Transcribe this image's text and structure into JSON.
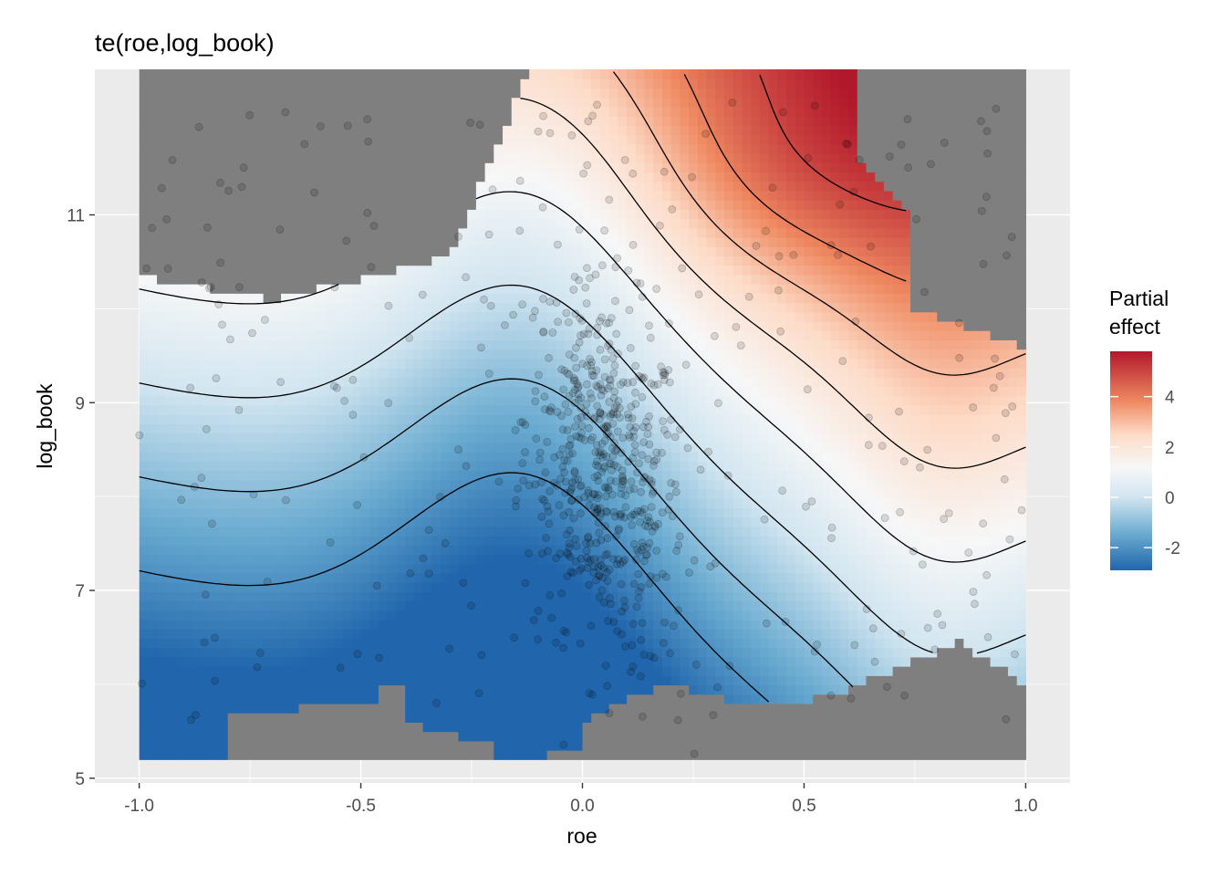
{
  "chart_data": {
    "type": "heatmap",
    "title": "te(roe,log_book)",
    "xlabel": "roe",
    "ylabel": "log_book",
    "xlim": [
      -1.1,
      1.1
    ],
    "ylim": [
      4.95,
      12.55
    ],
    "x_ticks": [
      -1.0,
      -0.5,
      0.0,
      0.5,
      1.0
    ],
    "x_tick_labels": [
      "-1.0",
      "-0.5",
      "0.0",
      "0.5",
      "1.0"
    ],
    "y_ticks": [
      5,
      7,
      9,
      11
    ],
    "y_tick_labels": [
      "5",
      "7",
      "9",
      "11"
    ],
    "grid": true,
    "legend": {
      "title_lines": [
        "Partial",
        "effect"
      ],
      "position": "right",
      "range": [
        -2.9,
        5.8
      ],
      "breaks": [
        4,
        2,
        0,
        -2
      ],
      "break_labels": [
        "4",
        "2",
        "0",
        "-2"
      ]
    },
    "colors": {
      "panel_bg": "#ebebeb",
      "excluded_region": "#7f7f7f",
      "grid_major": "#ffffff",
      "low": "#2166ac",
      "mid": "#f7f7f7",
      "high": "#b2182b",
      "contour": "#000000",
      "points": "#000000"
    },
    "points_note": "",
    "contour_levels": [
      -2,
      -1,
      0,
      1,
      2,
      3,
      4,
      5
    ]
  }
}
